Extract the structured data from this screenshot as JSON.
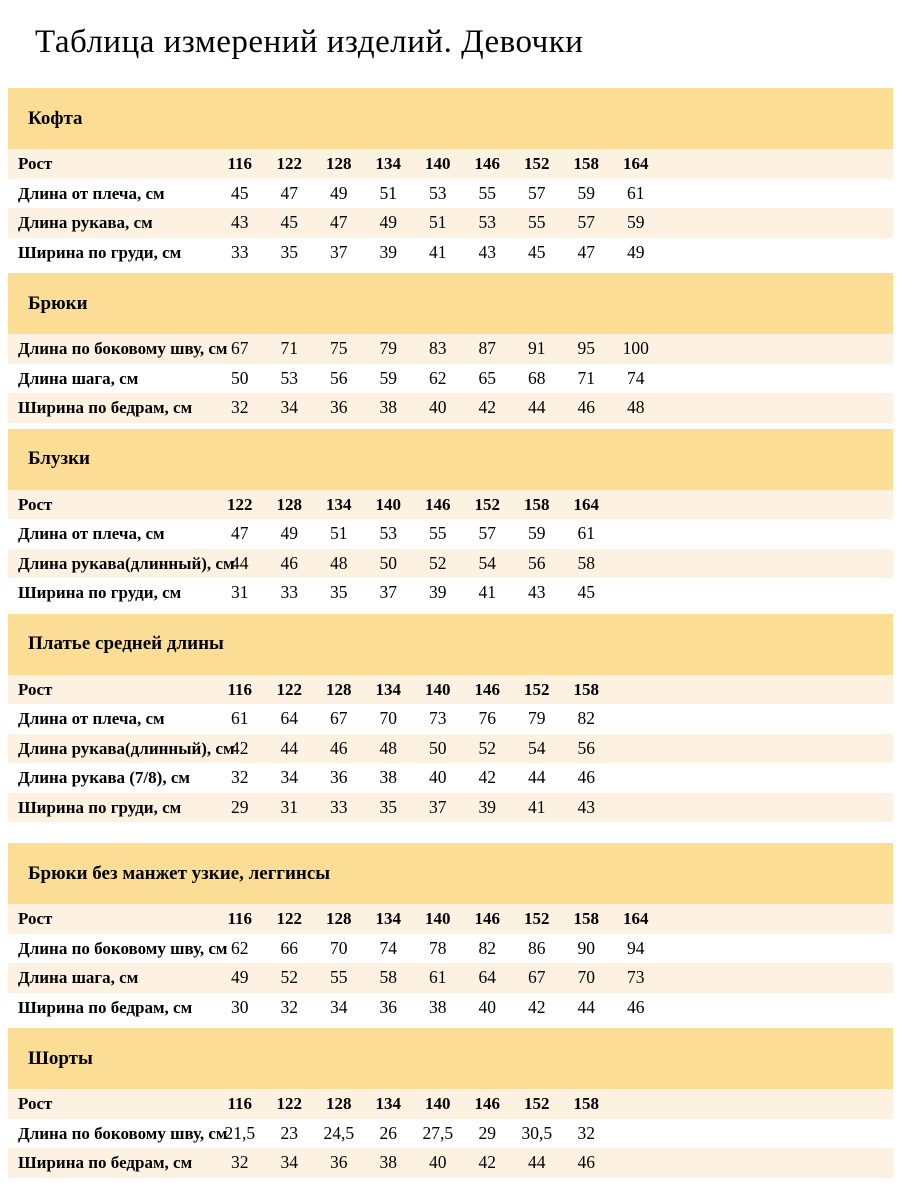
{
  "title": "Таблица измерений изделий. Девочки",
  "rost_label": "Рост",
  "colors": {
    "section_header_bg": "#fcdd96",
    "row_stripe_bg": "#fdf2e2",
    "text": "#000000"
  },
  "sections": [
    {
      "name": "Кофта",
      "heights": [
        "116",
        "122",
        "128",
        "134",
        "140",
        "146",
        "152",
        "158",
        "164"
      ],
      "rows": [
        {
          "label": "Длина от плеча, см",
          "values": [
            "45",
            "47",
            "49",
            "51",
            "53",
            "55",
            "57",
            "59",
            "61"
          ]
        },
        {
          "label": "Длина рукава, см",
          "values": [
            "43",
            "45",
            "47",
            "49",
            "51",
            "53",
            "55",
            "57",
            "59"
          ]
        },
        {
          "label": "Ширина по груди, см",
          "values": [
            "33",
            "35",
            "37",
            "39",
            "41",
            "43",
            "45",
            "47",
            "49"
          ]
        }
      ]
    },
    {
      "name": "Брюки",
      "heights": null,
      "rows": [
        {
          "label": "Длина по боковому шву, см",
          "values": [
            "67",
            "71",
            "75",
            "79",
            "83",
            "87",
            "91",
            "95",
            "100"
          ]
        },
        {
          "label": "Длина шага, см",
          "values": [
            "50",
            "53",
            "56",
            "59",
            "62",
            "65",
            "68",
            "71",
            "74"
          ]
        },
        {
          "label": "Ширина по бедрам, см",
          "values": [
            "32",
            "34",
            "36",
            "38",
            "40",
            "42",
            "44",
            "46",
            "48"
          ]
        }
      ]
    },
    {
      "name": "Блузки",
      "heights": [
        "122",
        "128",
        "134",
        "140",
        "146",
        "152",
        "158",
        "164"
      ],
      "rows": [
        {
          "label": "Длина от плеча, см",
          "values": [
            "47",
            "49",
            "51",
            "53",
            "55",
            "57",
            "59",
            "61"
          ]
        },
        {
          "label": "Длина рукава(длинный), см",
          "values": [
            "44",
            "46",
            "48",
            "50",
            "52",
            "54",
            "56",
            "58"
          ]
        },
        {
          "label": "Ширина по груди, см",
          "values": [
            "31",
            "33",
            "35",
            "37",
            "39",
            "41",
            "43",
            "45"
          ]
        }
      ]
    },
    {
      "name": "Платье средней длины",
      "heights": [
        "116",
        "122",
        "128",
        "134",
        "140",
        "146",
        "152",
        "158"
      ],
      "rows": [
        {
          "label": "Длина от плеча, см",
          "values": [
            "61",
            "64",
            "67",
            "70",
            "73",
            "76",
            "79",
            "82"
          ]
        },
        {
          "label": "Длина рукава(длинный), см",
          "values": [
            "42",
            "44",
            "46",
            "48",
            "50",
            "52",
            "54",
            "56"
          ]
        },
        {
          "label": "Длина рукава (7/8), см",
          "values": [
            "32",
            "34",
            "36",
            "38",
            "40",
            "42",
            "44",
            "46"
          ]
        },
        {
          "label": "Ширина по груди, см",
          "values": [
            "29",
            "31",
            "33",
            "35",
            "37",
            "39",
            "41",
            "43"
          ]
        }
      ]
    },
    {
      "name": "Брюки без манжет узкие, леггинсы",
      "gap_above": true,
      "heights": [
        "116",
        "122",
        "128",
        "134",
        "140",
        "146",
        "152",
        "158",
        "164"
      ],
      "rows": [
        {
          "label": "Длина по боковому шву, см",
          "values": [
            "62",
            "66",
            "70",
            "74",
            "78",
            "82",
            "86",
            "90",
            "94"
          ]
        },
        {
          "label": "Длина шага, см",
          "values": [
            "49",
            "52",
            "55",
            "58",
            "61",
            "64",
            "67",
            "70",
            "73"
          ]
        },
        {
          "label": "Ширина по бедрам, см",
          "values": [
            "30",
            "32",
            "34",
            "36",
            "38",
            "40",
            "42",
            "44",
            "46"
          ]
        }
      ]
    },
    {
      "name": "Шорты",
      "heights": [
        "116",
        "122",
        "128",
        "134",
        "140",
        "146",
        "152",
        "158"
      ],
      "rows": [
        {
          "label": "Длина по боковому шву, см",
          "values": [
            "21,5",
            "23",
            "24,5",
            "26",
            "27,5",
            "29",
            "30,5",
            "32"
          ]
        },
        {
          "label": "Ширина по бедрам, см",
          "values": [
            "32",
            "34",
            "36",
            "38",
            "40",
            "42",
            "44",
            "46"
          ]
        }
      ]
    }
  ]
}
